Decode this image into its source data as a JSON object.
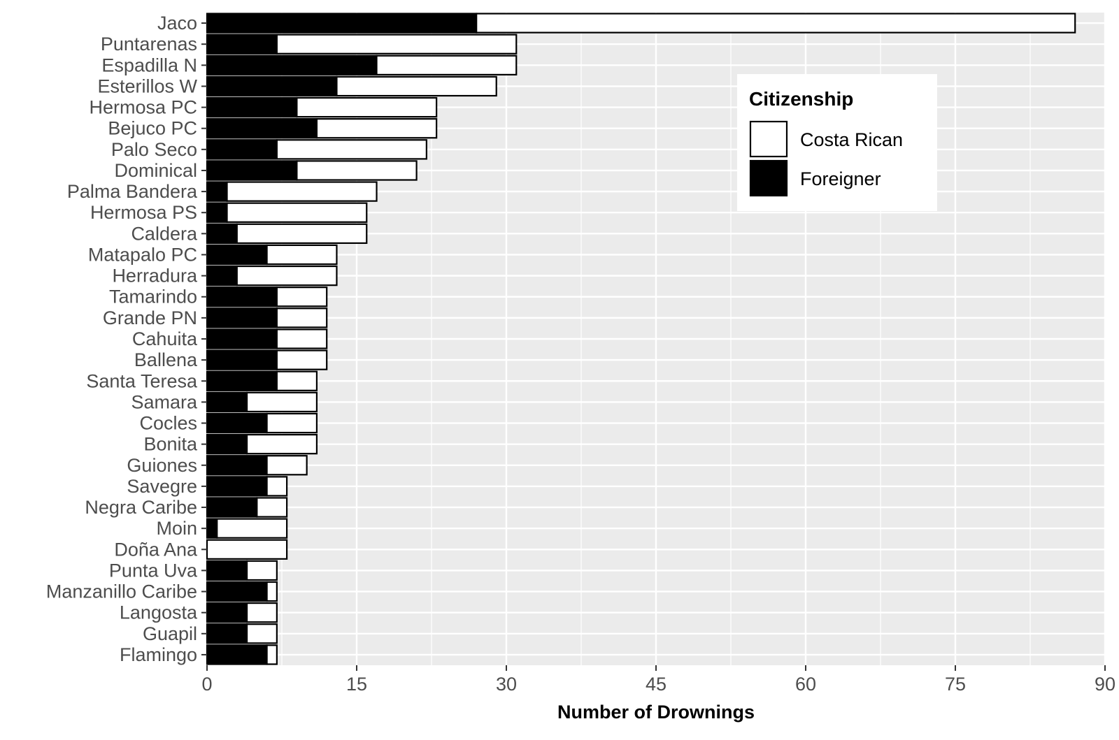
{
  "chart_data": {
    "type": "bar",
    "orientation": "horizontal",
    "stacked": true,
    "categories": [
      "Jaco",
      "Puntarenas",
      "Espadilla N",
      "Esterillos W",
      "Hermosa PC",
      "Bejuco PC",
      "Palo Seco",
      "Dominical",
      "Palma Bandera",
      "Hermosa PS",
      "Caldera",
      "Matapalo PC",
      "Herradura",
      "Tamarindo",
      "Grande PN",
      "Cahuita",
      "Ballena",
      "Santa Teresa",
      "Samara",
      "Cocles",
      "Bonita",
      "Guiones",
      "Savegre",
      "Negra Caribe",
      "Moin",
      "Doña Ana",
      "Punta Uva",
      "Manzanillo Caribe",
      "Langosta",
      "Guapil",
      "Flamingo"
    ],
    "series": [
      {
        "name": "Foreigner",
        "color": "#000000",
        "values": [
          27,
          7,
          17,
          13,
          9,
          11,
          7,
          9,
          2,
          2,
          3,
          6,
          3,
          7,
          7,
          7,
          7,
          7,
          4,
          6,
          4,
          6,
          6,
          5,
          1,
          0,
          4,
          6,
          4,
          4,
          6
        ]
      },
      {
        "name": "Costa Rican",
        "color": "#ffffff",
        "values": [
          60,
          24,
          14,
          16,
          14,
          12,
          15,
          12,
          15,
          14,
          13,
          7,
          10,
          5,
          5,
          5,
          5,
          4,
          7,
          5,
          7,
          4,
          2,
          3,
          7,
          8,
          3,
          1,
          3,
          3,
          1
        ]
      }
    ],
    "xlabel": "Number of Drownings",
    "ylabel": "",
    "xlim": [
      0,
      90
    ],
    "xticks": [
      0,
      15,
      30,
      45,
      60,
      75,
      90
    ],
    "grid": true,
    "legend": {
      "title": "Citizenship",
      "position": "top-right",
      "entries": [
        {
          "label": "Costa Rican",
          "color": "#ffffff"
        },
        {
          "label": "Foreigner",
          "color": "#000000"
        }
      ]
    },
    "colors": {
      "panel_background": "#ebebeb",
      "gridline": "#ffffff",
      "bar_outline": "#000000"
    }
  }
}
